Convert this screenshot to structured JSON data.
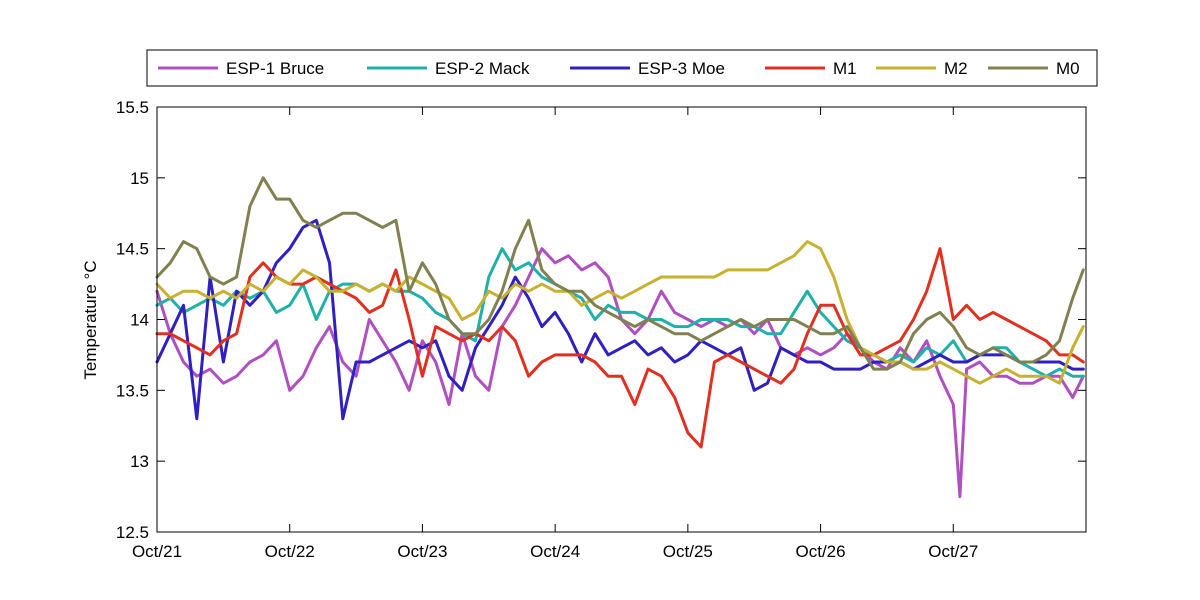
{
  "chart_data": {
    "type": "line",
    "ylabel": "Temperature °C",
    "xlabel": "",
    "title": "",
    "xlim": [
      0,
      7.0
    ],
    "ylim": [
      12.5,
      15.5
    ],
    "xticks": [
      {
        "x": 0,
        "label": "Oct/21"
      },
      {
        "x": 1,
        "label": "Oct/22"
      },
      {
        "x": 2,
        "label": "Oct/23"
      },
      {
        "x": 3,
        "label": "Oct/24"
      },
      {
        "x": 4,
        "label": "Oct/25"
      },
      {
        "x": 5,
        "label": "Oct/26"
      },
      {
        "x": 6,
        "label": "Oct/27"
      }
    ],
    "yticks": [
      {
        "y": 12.5,
        "label": "12.5"
      },
      {
        "y": 13,
        "label": "13"
      },
      {
        "y": 13.5,
        "label": "13.5"
      },
      {
        "y": 14,
        "label": "14"
      },
      {
        "y": 14.5,
        "label": "14.5"
      },
      {
        "y": 15,
        "label": "15"
      },
      {
        "y": 15.5,
        "label": "15.5"
      }
    ],
    "grid": false,
    "legend": "top, horizontal, outside",
    "series": [
      {
        "name": "ESP-1 Bruce",
        "color": "#b050c0",
        "x": [
          0.0,
          0.1,
          0.2,
          0.3,
          0.4,
          0.5,
          0.6,
          0.7,
          0.8,
          0.9,
          1.0,
          1.1,
          1.2,
          1.3,
          1.4,
          1.5,
          1.6,
          1.7,
          1.8,
          1.9,
          2.0,
          2.1,
          2.2,
          2.3,
          2.4,
          2.5,
          2.6,
          2.7,
          2.8,
          2.9,
          3.0,
          3.1,
          3.2,
          3.3,
          3.4,
          3.5,
          3.6,
          3.7,
          3.8,
          3.9,
          4.0,
          4.1,
          4.2,
          4.3,
          4.4,
          4.5,
          4.6,
          4.7,
          4.8,
          4.9,
          5.0,
          5.1,
          5.2,
          5.3,
          5.4,
          5.5,
          5.6,
          5.7,
          5.8,
          5.9,
          6.0,
          6.05,
          6.1,
          6.2,
          6.3,
          6.4,
          6.5,
          6.6,
          6.7,
          6.8,
          6.9,
          6.98
        ],
        "y": [
          14.2,
          13.9,
          13.7,
          13.6,
          13.65,
          13.55,
          13.6,
          13.7,
          13.75,
          13.85,
          13.5,
          13.6,
          13.8,
          13.95,
          13.7,
          13.6,
          14.0,
          13.85,
          13.7,
          13.5,
          13.85,
          13.7,
          13.4,
          13.9,
          13.6,
          13.5,
          13.95,
          14.1,
          14.3,
          14.5,
          14.4,
          14.45,
          14.35,
          14.4,
          14.3,
          14.0,
          13.9,
          14.0,
          14.2,
          14.05,
          14.0,
          13.95,
          14.0,
          13.95,
          14.0,
          13.9,
          14.0,
          13.8,
          13.75,
          13.8,
          13.75,
          13.8,
          13.9,
          13.8,
          13.7,
          13.65,
          13.8,
          13.7,
          13.85,
          13.6,
          13.4,
          12.75,
          13.65,
          13.7,
          13.6,
          13.6,
          13.55,
          13.55,
          13.6,
          13.6,
          13.45,
          13.6
        ]
      },
      {
        "name": "ESP-2 Mack",
        "color": "#20b0a8",
        "x": [
          0.0,
          0.1,
          0.2,
          0.3,
          0.4,
          0.5,
          0.6,
          0.7,
          0.8,
          0.9,
          1.0,
          1.1,
          1.2,
          1.3,
          1.4,
          1.5,
          1.6,
          1.7,
          1.8,
          1.9,
          2.0,
          2.1,
          2.2,
          2.3,
          2.4,
          2.5,
          2.6,
          2.7,
          2.8,
          2.9,
          3.0,
          3.1,
          3.2,
          3.3,
          3.4,
          3.5,
          3.6,
          3.7,
          3.8,
          3.9,
          4.0,
          4.1,
          4.2,
          4.3,
          4.4,
          4.5,
          4.6,
          4.7,
          4.8,
          4.9,
          5.0,
          5.1,
          5.2,
          5.3,
          5.4,
          5.5,
          5.6,
          5.7,
          5.8,
          5.9,
          6.0,
          6.1,
          6.2,
          6.3,
          6.4,
          6.5,
          6.6,
          6.7,
          6.8,
          6.9,
          6.98
        ],
        "y": [
          14.1,
          14.15,
          14.05,
          14.1,
          14.15,
          14.1,
          14.2,
          14.15,
          14.2,
          14.05,
          14.1,
          14.25,
          14.0,
          14.2,
          14.25,
          14.25,
          14.2,
          14.25,
          14.2,
          14.2,
          14.15,
          14.05,
          14.0,
          13.9,
          13.85,
          14.3,
          14.5,
          14.35,
          14.4,
          14.3,
          14.25,
          14.2,
          14.15,
          14.0,
          14.1,
          14.05,
          14.05,
          14.0,
          14.0,
          13.95,
          13.95,
          14.0,
          14.0,
          14.0,
          13.95,
          13.95,
          13.9,
          13.9,
          14.05,
          14.2,
          14.05,
          13.95,
          13.85,
          13.8,
          13.75,
          13.7,
          13.75,
          13.7,
          13.8,
          13.75,
          13.85,
          13.7,
          13.75,
          13.8,
          13.8,
          13.7,
          13.65,
          13.6,
          13.65,
          13.6,
          13.6
        ]
      },
      {
        "name": "ESP-3 Moe",
        "color": "#3020c0",
        "x": [
          0.0,
          0.1,
          0.2,
          0.3,
          0.4,
          0.5,
          0.6,
          0.7,
          0.8,
          0.9,
          1.0,
          1.1,
          1.2,
          1.3,
          1.4,
          1.5,
          1.6,
          1.7,
          1.8,
          1.9,
          2.0,
          2.1,
          2.2,
          2.3,
          2.4,
          2.5,
          2.6,
          2.7,
          2.8,
          2.9,
          3.0,
          3.1,
          3.2,
          3.3,
          3.4,
          3.5,
          3.6,
          3.7,
          3.8,
          3.9,
          4.0,
          4.1,
          4.2,
          4.3,
          4.4,
          4.5,
          4.6,
          4.7,
          4.8,
          4.9,
          5.0,
          5.1,
          5.2,
          5.3,
          5.4,
          5.5,
          5.6,
          5.7,
          5.8,
          5.9,
          6.0,
          6.1,
          6.2,
          6.3,
          6.4,
          6.5,
          6.6,
          6.7,
          6.8,
          6.9,
          6.98
        ],
        "y": [
          13.7,
          13.9,
          14.1,
          13.3,
          14.3,
          13.7,
          14.2,
          14.1,
          14.2,
          14.4,
          14.5,
          14.65,
          14.7,
          14.4,
          13.3,
          13.7,
          13.7,
          13.75,
          13.8,
          13.85,
          13.8,
          13.85,
          13.6,
          13.5,
          13.8,
          13.95,
          14.1,
          14.3,
          14.15,
          13.95,
          14.05,
          13.9,
          13.7,
          13.9,
          13.75,
          13.8,
          13.85,
          13.75,
          13.8,
          13.7,
          13.75,
          13.85,
          13.8,
          13.75,
          13.8,
          13.5,
          13.55,
          13.8,
          13.75,
          13.7,
          13.7,
          13.65,
          13.65,
          13.65,
          13.7,
          13.7,
          13.7,
          13.65,
          13.7,
          13.75,
          13.7,
          13.7,
          13.75,
          13.75,
          13.75,
          13.7,
          13.7,
          13.7,
          13.7,
          13.65,
          13.65
        ]
      },
      {
        "name": "M1",
        "color": "#e03020",
        "x": [
          0.0,
          0.1,
          0.2,
          0.3,
          0.4,
          0.5,
          0.6,
          0.7,
          0.8,
          0.9,
          1.0,
          1.1,
          1.2,
          1.3,
          1.4,
          1.5,
          1.6,
          1.7,
          1.8,
          1.9,
          2.0,
          2.1,
          2.2,
          2.3,
          2.4,
          2.5,
          2.6,
          2.7,
          2.8,
          2.9,
          3.0,
          3.1,
          3.2,
          3.3,
          3.4,
          3.5,
          3.6,
          3.7,
          3.8,
          3.9,
          4.0,
          4.1,
          4.2,
          4.3,
          4.4,
          4.5,
          4.6,
          4.7,
          4.8,
          4.9,
          5.0,
          5.1,
          5.2,
          5.3,
          5.4,
          5.5,
          5.6,
          5.7,
          5.8,
          5.9,
          6.0,
          6.1,
          6.2,
          6.3,
          6.4,
          6.5,
          6.6,
          6.7,
          6.8,
          6.9,
          6.98
        ],
        "y": [
          13.9,
          13.9,
          13.85,
          13.8,
          13.75,
          13.85,
          13.9,
          14.3,
          14.4,
          14.3,
          14.25,
          14.25,
          14.3,
          14.25,
          14.2,
          14.15,
          14.05,
          14.1,
          14.35,
          14.0,
          13.6,
          13.95,
          13.9,
          13.85,
          13.9,
          13.85,
          13.95,
          13.85,
          13.6,
          13.7,
          13.75,
          13.75,
          13.75,
          13.7,
          13.6,
          13.6,
          13.4,
          13.65,
          13.6,
          13.45,
          13.2,
          13.1,
          13.7,
          13.75,
          13.7,
          13.65,
          13.6,
          13.55,
          13.65,
          13.9,
          14.1,
          14.1,
          13.9,
          13.75,
          13.75,
          13.8,
          13.85,
          14.0,
          14.2,
          14.5,
          14.0,
          14.1,
          14.0,
          14.05,
          14.0,
          13.95,
          13.9,
          13.85,
          13.75,
          13.75,
          13.7
        ]
      },
      {
        "name": "M2",
        "color": "#c8b030",
        "x": [
          0.0,
          0.1,
          0.2,
          0.3,
          0.4,
          0.5,
          0.6,
          0.7,
          0.8,
          0.9,
          1.0,
          1.1,
          1.2,
          1.3,
          1.4,
          1.5,
          1.6,
          1.7,
          1.8,
          1.9,
          2.0,
          2.1,
          2.2,
          2.3,
          2.4,
          2.5,
          2.6,
          2.7,
          2.8,
          2.9,
          3.0,
          3.1,
          3.2,
          3.3,
          3.4,
          3.5,
          3.6,
          3.7,
          3.8,
          3.9,
          4.0,
          4.1,
          4.2,
          4.3,
          4.4,
          4.5,
          4.6,
          4.7,
          4.8,
          4.9,
          5.0,
          5.1,
          5.2,
          5.3,
          5.4,
          5.5,
          5.6,
          5.7,
          5.8,
          5.9,
          6.0,
          6.1,
          6.2,
          6.3,
          6.4,
          6.5,
          6.6,
          6.7,
          6.8,
          6.9,
          6.98
        ],
        "y": [
          14.25,
          14.15,
          14.2,
          14.2,
          14.15,
          14.2,
          14.15,
          14.25,
          14.2,
          14.3,
          14.25,
          14.35,
          14.3,
          14.2,
          14.2,
          14.25,
          14.2,
          14.25,
          14.2,
          14.3,
          14.25,
          14.2,
          14.15,
          14.0,
          14.05,
          14.2,
          14.15,
          14.25,
          14.2,
          14.25,
          14.2,
          14.2,
          14.1,
          14.15,
          14.2,
          14.15,
          14.2,
          14.25,
          14.3,
          14.3,
          14.3,
          14.3,
          14.3,
          14.35,
          14.35,
          14.35,
          14.35,
          14.4,
          14.45,
          14.55,
          14.5,
          14.3,
          14.0,
          13.8,
          13.75,
          13.7,
          13.7,
          13.65,
          13.65,
          13.7,
          13.65,
          13.6,
          13.55,
          13.6,
          13.65,
          13.6,
          13.6,
          13.6,
          13.55,
          13.8,
          13.95
        ]
      },
      {
        "name": "M0",
        "color": "#808050",
        "x": [
          0.0,
          0.1,
          0.2,
          0.3,
          0.4,
          0.5,
          0.6,
          0.7,
          0.8,
          0.9,
          1.0,
          1.1,
          1.2,
          1.3,
          1.4,
          1.5,
          1.6,
          1.7,
          1.8,
          1.9,
          2.0,
          2.1,
          2.2,
          2.3,
          2.4,
          2.5,
          2.6,
          2.7,
          2.8,
          2.9,
          3.0,
          3.1,
          3.2,
          3.3,
          3.4,
          3.5,
          3.6,
          3.7,
          3.8,
          3.9,
          4.0,
          4.1,
          4.2,
          4.3,
          4.4,
          4.5,
          4.6,
          4.7,
          4.8,
          4.9,
          5.0,
          5.1,
          5.2,
          5.3,
          5.4,
          5.5,
          5.6,
          5.7,
          5.8,
          5.9,
          6.0,
          6.1,
          6.2,
          6.3,
          6.4,
          6.5,
          6.6,
          6.7,
          6.8,
          6.9,
          6.98
        ],
        "y": [
          14.3,
          14.4,
          14.55,
          14.5,
          14.3,
          14.25,
          14.3,
          14.8,
          15.0,
          14.85,
          14.85,
          14.7,
          14.65,
          14.7,
          14.75,
          14.75,
          14.7,
          14.65,
          14.7,
          14.2,
          14.4,
          14.25,
          14.0,
          13.9,
          13.9,
          14.0,
          14.2,
          14.5,
          14.7,
          14.35,
          14.25,
          14.2,
          14.2,
          14.1,
          14.05,
          14.0,
          13.95,
          14.0,
          13.95,
          13.9,
          13.9,
          13.85,
          13.9,
          13.95,
          14.0,
          13.95,
          14.0,
          14.0,
          14.0,
          13.95,
          13.9,
          13.9,
          13.95,
          13.8,
          13.65,
          13.65,
          13.7,
          13.9,
          14.0,
          14.05,
          13.95,
          13.8,
          13.75,
          13.8,
          13.75,
          13.7,
          13.7,
          13.75,
          13.85,
          14.15,
          14.35
        ]
      }
    ]
  }
}
